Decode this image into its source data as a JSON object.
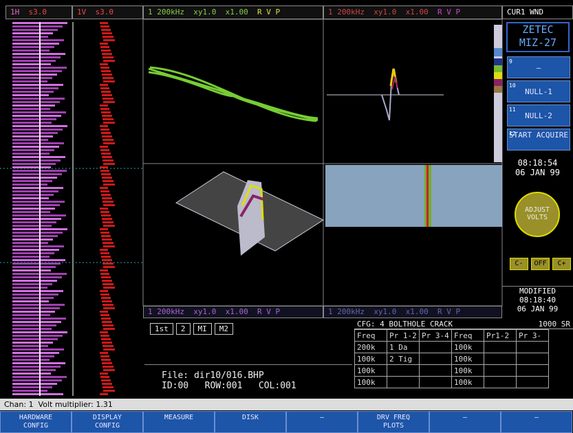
{
  "header": {
    "h_channel": "1H",
    "h_scale": "s3.0",
    "v_channel": "1V",
    "v_scale": "s3.0",
    "plot_a": "1 200kHz  xy1.0  x1.00",
    "plot_a_flags": "R V P",
    "plot_b": "1 200kHz  xy1.0  x1.00",
    "plot_b_flags": "R V P",
    "window": "CUR1 WND"
  },
  "sidebar": {
    "logo": [
      "ZETEC",
      "MIZ-27"
    ],
    "buttons": [
      {
        "key": "9",
        "label": "–"
      },
      {
        "key": "10",
        "label": "NULL-1"
      },
      {
        "key": "11",
        "label": "NULL-2"
      },
      {
        "key": "12",
        "label": "START ACQUIRE"
      }
    ],
    "time": "08:18:54",
    "date": "06 JAN 99",
    "dial": "ADJUST VOLTS",
    "toggles": [
      "C-",
      "OFF",
      "C+"
    ],
    "modified": "MODIFIED",
    "modified_time": "08:18:40",
    "modified_date": "06 JAN 99"
  },
  "info_bar": {
    "left": "1 200kHz  xy1.0  x1.00",
    "left_flags": "R V P",
    "right": "1 200kHz  xy1.0  x1.00",
    "right_flags": "R V P"
  },
  "markers": [
    "1st",
    "2",
    "MI",
    "M2"
  ],
  "file": {
    "name": "File: dir10/016.BHP",
    "id": "ID:00",
    "row": "ROW:001",
    "col": "COL:001"
  },
  "table": {
    "config": "CFG: 4 BOLTHOLE CRACK",
    "rate": "1000 SR",
    "headers": [
      "Freq",
      "Pr 1-2",
      "Pr 3-4",
      "Freq",
      "Pr1-2",
      "Pr 3-"
    ],
    "rows": [
      [
        "200k",
        "1 Da",
        "",
        "100k",
        "",
        ""
      ],
      [
        "100k",
        "2 Tig",
        "",
        "100k",
        "",
        ""
      ],
      [
        "100k",
        "",
        "",
        "100k",
        "",
        ""
      ],
      [
        "100k",
        "",
        "",
        "100k",
        "",
        ""
      ]
    ]
  },
  "status": "Chan: 1  Volt multiplier: 1.31",
  "softkeys": [
    "HARDWARE CONFIG",
    "DISPLAY CONFIG",
    "MEASURE",
    "DISK",
    "–",
    "DRV FREQ PLOTS",
    "–",
    "–"
  ]
}
